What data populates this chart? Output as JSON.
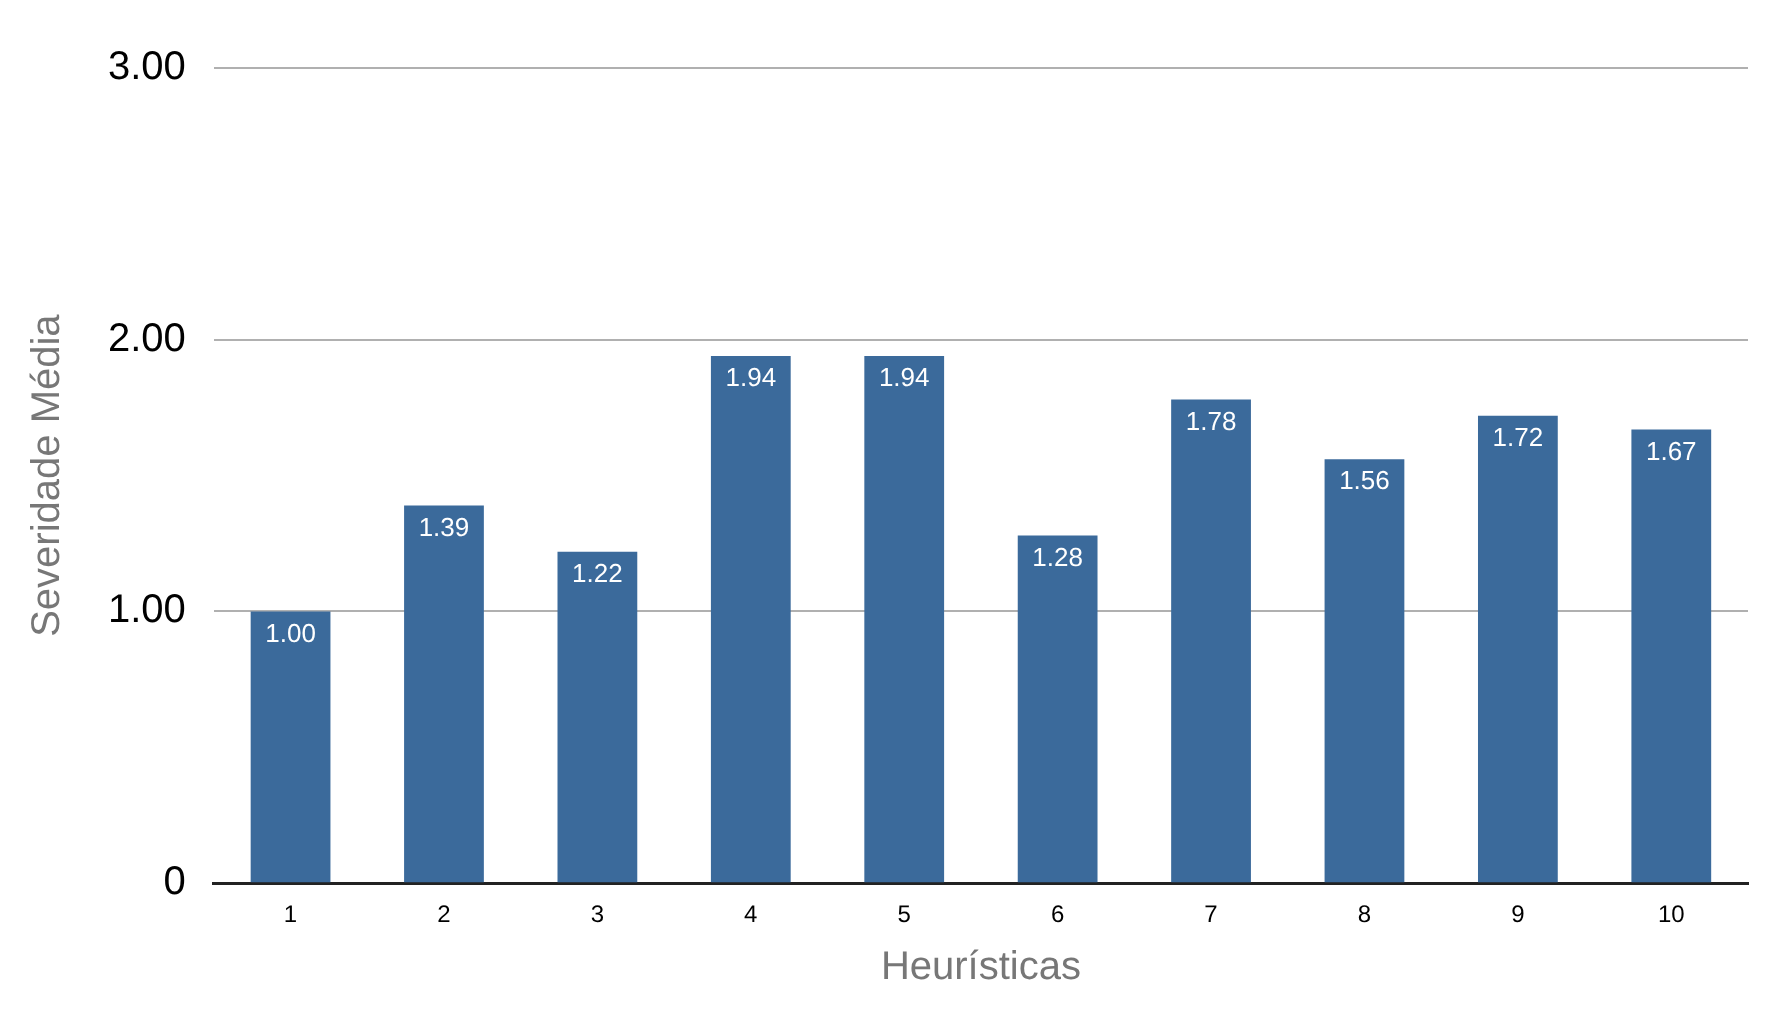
{
  "chart_data": {
    "type": "bar",
    "xlabel": "Heurísticas",
    "ylabel": "Severidade Média",
    "categories": [
      "1",
      "2",
      "3",
      "4",
      "5",
      "6",
      "7",
      "8",
      "9",
      "10"
    ],
    "values": [
      1.0,
      1.39,
      1.22,
      1.94,
      1.94,
      1.28,
      1.78,
      1.56,
      1.72,
      1.67
    ],
    "value_labels": [
      "1.00",
      "1.39",
      "1.22",
      "1.94",
      "1.94",
      "1.28",
      "1.78",
      "1.56",
      "1.72",
      "1.67"
    ],
    "color": "#3b6a9b",
    "ylim": [
      0,
      3
    ],
    "yticks": [
      {
        "value": 0,
        "label": "0"
      },
      {
        "value": 1,
        "label": "1.00"
      },
      {
        "value": 2,
        "label": "2.00"
      },
      {
        "value": 3,
        "label": "3.00"
      }
    ],
    "grid": "y",
    "legend": false
  }
}
